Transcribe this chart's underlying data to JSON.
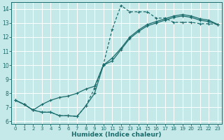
{
  "xlabel": "Humidex (Indice chaleur)",
  "bg_color": "#c5e8e8",
  "line_color": "#1a6b6b",
  "grid_color": "#ffffff",
  "xlim": [
    -0.5,
    23.5
  ],
  "ylim": [
    5.8,
    14.5
  ],
  "x_ticks": [
    0,
    1,
    2,
    3,
    4,
    5,
    6,
    7,
    8,
    9,
    10,
    11,
    12,
    13,
    14,
    15,
    16,
    17,
    18,
    19,
    20,
    21,
    22,
    23
  ],
  "y_ticks": [
    6,
    7,
    8,
    9,
    10,
    11,
    12,
    13,
    14
  ],
  "line_dashed_x": [
    0,
    1,
    2,
    3,
    4,
    5,
    6,
    7,
    8,
    9,
    10,
    11,
    12,
    13,
    14,
    15,
    16,
    17,
    18,
    19,
    20,
    21,
    22,
    23
  ],
  "line_dashed_y": [
    7.5,
    7.2,
    6.8,
    6.65,
    6.65,
    6.4,
    6.4,
    6.35,
    7.1,
    8.35,
    10.05,
    12.55,
    14.25,
    13.8,
    13.8,
    13.8,
    13.35,
    13.35,
    13.05,
    13.05,
    13.05,
    12.95,
    12.95,
    12.9
  ],
  "line_solid1_x": [
    0,
    1,
    2,
    3,
    4,
    5,
    6,
    7,
    8,
    9,
    10,
    11,
    12,
    13,
    14,
    15,
    16,
    17,
    18,
    19,
    20,
    21,
    22,
    23
  ],
  "line_solid1_y": [
    7.5,
    7.2,
    6.8,
    6.65,
    6.65,
    6.4,
    6.4,
    6.35,
    7.1,
    8.0,
    10.0,
    10.5,
    11.2,
    12.0,
    12.5,
    12.9,
    13.1,
    13.3,
    13.5,
    13.6,
    13.5,
    13.3,
    13.2,
    12.9
  ],
  "line_solid2_x": [
    0,
    1,
    2,
    3,
    4,
    5,
    6,
    7,
    8,
    9,
    10,
    11,
    12,
    13,
    14,
    15,
    16,
    17,
    18,
    19,
    20,
    21,
    22,
    23
  ],
  "line_solid2_y": [
    7.5,
    7.2,
    6.8,
    7.2,
    7.5,
    7.7,
    7.8,
    8.0,
    8.3,
    8.5,
    10.0,
    10.3,
    11.1,
    11.9,
    12.4,
    12.8,
    13.0,
    13.2,
    13.4,
    13.5,
    13.4,
    13.2,
    13.1,
    12.9
  ]
}
